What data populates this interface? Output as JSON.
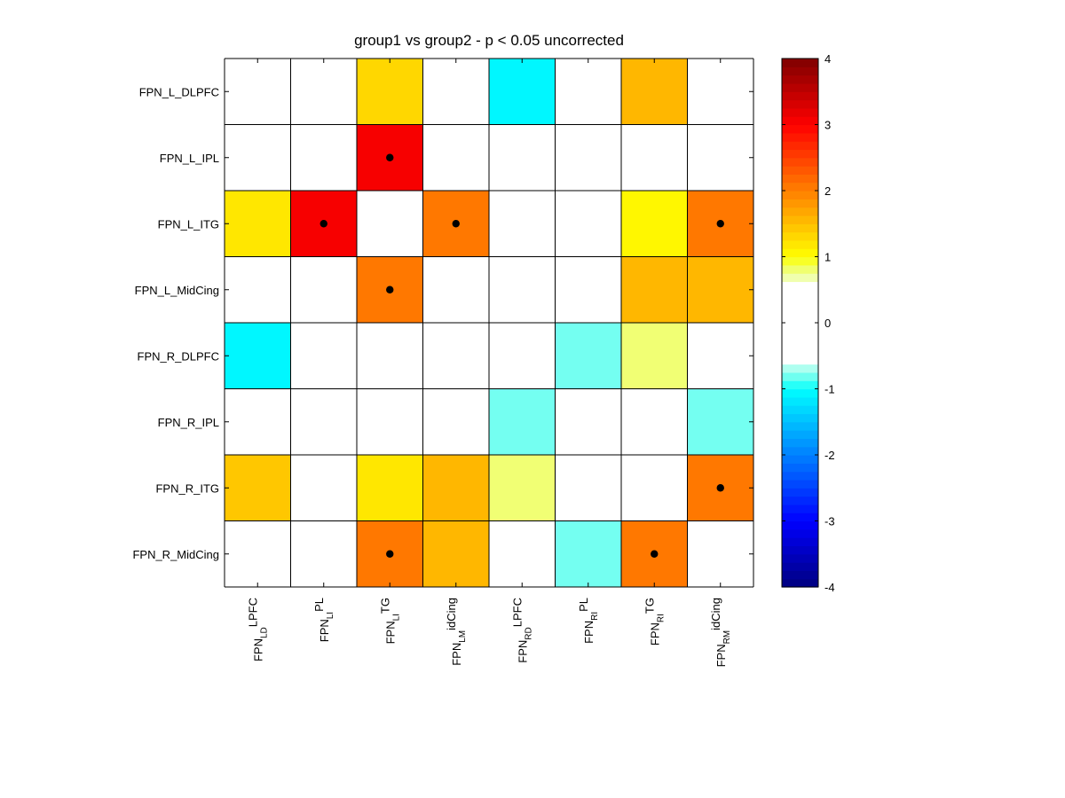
{
  "chart_data": {
    "type": "heatmap",
    "title": "group1 vs group2 - p < 0.05 uncorrected",
    "row_labels": [
      "FPN_L_DLPFC",
      "FPN_L_IPL",
      "FPN_L_ITG",
      "FPN_L_MidCing",
      "FPN_R_DLPFC",
      "FPN_R_IPL",
      "FPN_R_ITG",
      "FPN_R_MidCing"
    ],
    "col_labels": [
      {
        "base": "FPN",
        "sub": "LD",
        "sup": "LPFC"
      },
      {
        "base": "FPN",
        "sub": "LI",
        "sup": "PL"
      },
      {
        "base": "FPN",
        "sub": "LI",
        "sup": "TG"
      },
      {
        "base": "FPN",
        "sub": "LM",
        "sup": "idCing"
      },
      {
        "base": "FPN",
        "sub": "RD",
        "sup": "LPFC"
      },
      {
        "base": "FPN",
        "sub": "RI",
        "sup": "PL"
      },
      {
        "base": "FPN",
        "sub": "RI",
        "sup": "TG"
      },
      {
        "base": "FPN",
        "sub": "RM",
        "sup": "idCing"
      }
    ],
    "values": [
      [
        0,
        0,
        1.3,
        0,
        -1.1,
        0,
        1.5,
        0
      ],
      [
        0,
        0,
        3.0,
        0,
        0,
        0,
        0,
        0
      ],
      [
        1.2,
        3.0,
        0,
        2.0,
        0,
        0,
        1.1,
        2.0
      ],
      [
        0,
        0,
        2.0,
        0,
        0,
        0,
        1.6,
        1.6
      ],
      [
        -1.1,
        0,
        0,
        0,
        0,
        -0.8,
        0.8,
        0
      ],
      [
        0,
        0,
        0,
        0,
        -0.8,
        0,
        0,
        -0.8
      ],
      [
        1.4,
        0,
        1.2,
        1.6,
        0.8,
        0,
        0,
        2.0
      ],
      [
        0,
        0,
        2.0,
        1.6,
        0,
        -0.8,
        2.0,
        0
      ]
    ],
    "significant": [
      [
        1,
        2
      ],
      [
        2,
        1
      ],
      [
        2,
        3
      ],
      [
        2,
        7
      ],
      [
        3,
        2
      ],
      [
        6,
        7
      ],
      [
        7,
        2
      ],
      [
        7,
        6
      ]
    ],
    "colorbar": {
      "range": [
        -4,
        4
      ],
      "ticks": [
        4,
        3,
        2,
        1,
        0,
        -1,
        -2,
        -3,
        -4
      ],
      "colormap": "jet with white center",
      "blank_range": [
        -0.6,
        0.6
      ]
    }
  }
}
